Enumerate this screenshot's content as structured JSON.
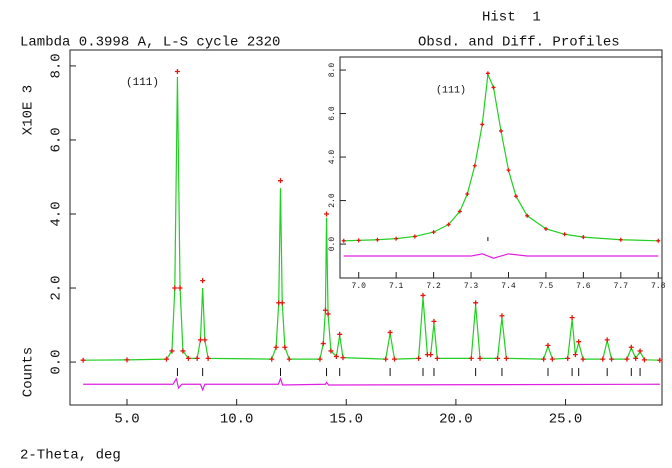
{
  "chart_data": [
    {
      "type": "line",
      "subtitle": "Lambda 0.3998 A, L-S cycle 2320",
      "histogram_label": "Hist  1",
      "title": "Obsd. and Diff. Profiles",
      "xlabel": "2-Theta, deg",
      "ylabel": "Counts",
      "y_scale_label": "X10E 3",
      "annotations": [
        "(111)"
      ],
      "xlim": [
        2.4,
        29.4
      ],
      "ylim": [
        -1.16,
        8.43
      ],
      "xticks": [
        {
          "value": 5,
          "label": "5.0"
        },
        {
          "value": 10,
          "label": "10.0"
        },
        {
          "value": 15,
          "label": "15.0"
        },
        {
          "value": 20,
          "label": "20.0"
        },
        {
          "value": 25,
          "label": "25.0"
        }
      ],
      "yticks": [
        {
          "value": 0,
          "label": "0.0"
        },
        {
          "value": 2,
          "label": "2.0"
        },
        {
          "value": 4,
          "label": "4.0"
        },
        {
          "value": 6,
          "label": "6.0"
        },
        {
          "value": 8,
          "label": "8.0"
        }
      ],
      "series": [
        {
          "style": "line",
          "color": "#22d022",
          "x": [
            3.0,
            5.0,
            6.8,
            7.05,
            7.18,
            7.3,
            7.42,
            7.55,
            7.8,
            8.2,
            8.35,
            8.45,
            8.55,
            8.7,
            11.6,
            11.8,
            11.92,
            12.0,
            12.08,
            12.2,
            12.4,
            13.8,
            13.95,
            14.05,
            14.1,
            14.17,
            14.3,
            14.55,
            14.7,
            14.85,
            16.8,
            17.0,
            17.2,
            18.3,
            18.5,
            18.7,
            18.85,
            19.0,
            19.15,
            20.7,
            20.9,
            21.1,
            21.9,
            22.1,
            22.3,
            24.0,
            24.2,
            24.4,
            25.1,
            25.3,
            25.45,
            25.6,
            25.8,
            26.7,
            26.9,
            27.1,
            27.8,
            28.0,
            28.2,
            28.4,
            28.6,
            29.3
          ],
          "values": [
            0.05,
            0.06,
            0.08,
            0.3,
            2.0,
            7.7,
            2.0,
            0.3,
            0.1,
            0.1,
            0.6,
            2.0,
            0.6,
            0.1,
            0.08,
            0.4,
            1.6,
            4.7,
            1.6,
            0.4,
            0.08,
            0.08,
            0.5,
            1.4,
            3.9,
            1.3,
            0.3,
            0.15,
            0.72,
            0.12,
            0.08,
            0.78,
            0.08,
            0.1,
            1.75,
            0.2,
            0.2,
            1.05,
            0.1,
            0.1,
            1.55,
            0.1,
            0.1,
            1.2,
            0.1,
            0.08,
            0.43,
            0.08,
            0.1,
            1.15,
            0.2,
            0.52,
            0.08,
            0.08,
            0.58,
            0.08,
            0.08,
            0.38,
            0.1,
            0.28,
            0.06,
            0.05
          ]
        },
        {
          "style": "plus",
          "color": "#e01a10",
          "x": [
            3.0,
            5.0,
            6.8,
            7.05,
            7.18,
            7.3,
            7.42,
            7.55,
            7.8,
            8.2,
            8.35,
            8.45,
            8.55,
            8.7,
            11.6,
            11.8,
            11.92,
            12.0,
            12.08,
            12.2,
            12.4,
            13.8,
            13.95,
            14.05,
            14.1,
            14.17,
            14.3,
            14.55,
            14.7,
            14.85,
            16.8,
            17.0,
            17.2,
            18.3,
            18.5,
            18.7,
            18.85,
            19.0,
            19.15,
            20.7,
            20.9,
            21.1,
            21.9,
            22.1,
            22.3,
            24.0,
            24.2,
            24.4,
            25.1,
            25.3,
            25.45,
            25.6,
            25.8,
            26.7,
            26.9,
            27.1,
            27.8,
            28.0,
            28.2,
            28.4,
            28.6,
            29.3
          ],
          "values": [
            0.05,
            0.06,
            0.08,
            0.3,
            2.0,
            7.85,
            2.0,
            0.3,
            0.1,
            0.1,
            0.6,
            2.2,
            0.6,
            0.1,
            0.08,
            0.4,
            1.6,
            4.9,
            1.6,
            0.4,
            0.08,
            0.08,
            0.5,
            1.4,
            4.0,
            1.3,
            0.3,
            0.15,
            0.75,
            0.12,
            0.08,
            0.8,
            0.08,
            0.1,
            1.8,
            0.2,
            0.2,
            1.1,
            0.1,
            0.1,
            1.6,
            0.1,
            0.1,
            1.25,
            0.1,
            0.08,
            0.45,
            0.08,
            0.1,
            1.2,
            0.2,
            0.55,
            0.08,
            0.08,
            0.6,
            0.08,
            0.08,
            0.4,
            0.1,
            0.3,
            0.06,
            0.05
          ]
        },
        {
          "style": "line",
          "color": "#e020e0",
          "x": [
            3.0,
            7.1,
            7.25,
            7.35,
            7.5,
            8.35,
            8.45,
            8.55,
            11.9,
            12.0,
            12.1,
            14.05,
            14.1,
            14.2,
            29.3
          ],
          "values": [
            -0.6,
            -0.6,
            -0.45,
            -0.7,
            -0.6,
            -0.6,
            -0.75,
            -0.6,
            -0.6,
            -0.45,
            -0.62,
            -0.6,
            -0.55,
            -0.62,
            -0.6
          ]
        }
      ],
      "reflections": [
        7.3,
        8.45,
        12.0,
        14.1,
        14.7,
        17.0,
        18.5,
        19.0,
        20.9,
        22.1,
        24.2,
        25.3,
        25.6,
        26.9,
        28.0,
        28.4
      ]
    },
    {
      "type": "line",
      "annotations": [
        "(111)"
      ],
      "xlim": [
        6.95,
        7.81
      ],
      "ylim": [
        -1.56,
        8.6
      ],
      "xticks": [
        {
          "value": 7.0,
          "label": "7.0"
        },
        {
          "value": 7.1,
          "label": "7.1"
        },
        {
          "value": 7.2,
          "label": "7.2"
        },
        {
          "value": 7.3,
          "label": "7.3"
        },
        {
          "value": 7.4,
          "label": "7.4"
        },
        {
          "value": 7.5,
          "label": "7.5"
        },
        {
          "value": 7.6,
          "label": "7.6"
        },
        {
          "value": 7.7,
          "label": "7.7"
        },
        {
          "value": 7.8,
          "label": "7.8"
        }
      ],
      "yticks": [
        {
          "value": 0,
          "label": "0.0"
        },
        {
          "value": 2,
          "label": "2.0"
        },
        {
          "value": 4,
          "label": "4.0"
        },
        {
          "value": 6,
          "label": "6.0"
        },
        {
          "value": 8,
          "label": "8.0"
        }
      ],
      "series": [
        {
          "style": "line",
          "color": "#22d022",
          "x": [
            6.96,
            7.0,
            7.05,
            7.1,
            7.15,
            7.2,
            7.24,
            7.27,
            7.29,
            7.31,
            7.33,
            7.345,
            7.36,
            7.38,
            7.4,
            7.42,
            7.45,
            7.5,
            7.55,
            7.6,
            7.7,
            7.8
          ],
          "values": [
            0.15,
            0.17,
            0.2,
            0.25,
            0.35,
            0.55,
            0.9,
            1.5,
            2.3,
            3.6,
            5.5,
            7.8,
            7.2,
            5.2,
            3.4,
            2.2,
            1.3,
            0.7,
            0.45,
            0.32,
            0.2,
            0.15
          ]
        },
        {
          "style": "plus",
          "color": "#e01a10",
          "x": [
            6.96,
            7.0,
            7.05,
            7.1,
            7.15,
            7.2,
            7.24,
            7.27,
            7.29,
            7.31,
            7.33,
            7.345,
            7.36,
            7.38,
            7.4,
            7.42,
            7.45,
            7.5,
            7.55,
            7.6,
            7.7,
            7.8
          ],
          "values": [
            0.15,
            0.17,
            0.2,
            0.25,
            0.35,
            0.55,
            0.9,
            1.5,
            2.3,
            3.6,
            5.5,
            7.85,
            7.2,
            5.2,
            3.4,
            2.2,
            1.3,
            0.7,
            0.45,
            0.32,
            0.2,
            0.15
          ]
        },
        {
          "style": "line",
          "color": "#e020e0",
          "x": [
            6.96,
            7.3,
            7.33,
            7.36,
            7.4,
            7.45,
            7.8
          ],
          "values": [
            -0.55,
            -0.55,
            -0.45,
            -0.65,
            -0.45,
            -0.55,
            -0.55
          ]
        }
      ],
      "reflections": [
        7.345
      ]
    }
  ]
}
